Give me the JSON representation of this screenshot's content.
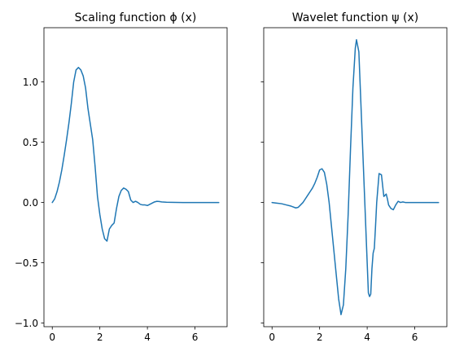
{
  "chart_data": [
    {
      "type": "line",
      "title": "Scaling function ϕ (x)",
      "xlabel": "",
      "ylabel": "",
      "xlim": [
        -0.35,
        7.35
      ],
      "ylim": [
        -1.03,
        1.45
      ],
      "xticks": [
        0,
        2,
        4,
        6
      ],
      "xtick_labels": [
        "0",
        "2",
        "4",
        "6"
      ],
      "yticks": [
        -1.0,
        -0.5,
        0.0,
        0.5,
        1.0
      ],
      "ytick_labels": [
        "−1.0",
        "−0.5",
        "0.0",
        "0.5",
        "1.0"
      ],
      "grid": false,
      "color": "#1f77b4",
      "series": [
        {
          "x": [
            0,
            0.1,
            0.2,
            0.3,
            0.4,
            0.5,
            0.6,
            0.7,
            0.8,
            0.9,
            1.0,
            1.1,
            1.2,
            1.3,
            1.4,
            1.5,
            1.6,
            1.7,
            1.8,
            1.9,
            2.0,
            2.1,
            2.2,
            2.3,
            2.4,
            2.5,
            2.6,
            2.7,
            2.8,
            2.9,
            3.0,
            3.1,
            3.2,
            3.3,
            3.4,
            3.5,
            3.6,
            3.7,
            3.8,
            3.9,
            4.0,
            4.1,
            4.2,
            4.3,
            4.4,
            4.5,
            4.6,
            4.8,
            5.0,
            5.5,
            6.0,
            6.5,
            7.0
          ],
          "y": [
            0.0,
            0.03,
            0.09,
            0.17,
            0.27,
            0.39,
            0.52,
            0.66,
            0.82,
            1.0,
            1.1,
            1.12,
            1.1,
            1.05,
            0.95,
            0.78,
            0.65,
            0.52,
            0.3,
            0.05,
            -0.1,
            -0.22,
            -0.3,
            -0.32,
            -0.22,
            -0.19,
            -0.17,
            -0.05,
            0.05,
            0.1,
            0.12,
            0.11,
            0.09,
            0.02,
            0.0,
            0.01,
            0.0,
            -0.015,
            -0.02,
            -0.02,
            -0.025,
            -0.015,
            -0.005,
            0.005,
            0.01,
            0.008,
            0.005,
            0.002,
            0.001,
            0.0,
            0.0,
            0.0,
            0.0
          ]
        }
      ]
    },
    {
      "type": "line",
      "title": "Wavelet function ψ (x)",
      "xlabel": "",
      "ylabel": "",
      "xlim": [
        -0.35,
        7.35
      ],
      "ylim": [
        -1.03,
        1.45
      ],
      "xticks": [
        0,
        2,
        4,
        6
      ],
      "xtick_labels": [
        "0",
        "2",
        "4",
        "6"
      ],
      "yticks": [
        -1.0,
        -0.5,
        0.0,
        0.5,
        1.0
      ],
      "ytick_labels": [],
      "grid": false,
      "color": "#1f77b4",
      "series": [
        {
          "x": [
            0,
            0.2,
            0.4,
            0.6,
            0.8,
            1.0,
            1.1,
            1.2,
            1.3,
            1.4,
            1.5,
            1.6,
            1.7,
            1.8,
            1.9,
            2.0,
            2.1,
            2.2,
            2.3,
            2.4,
            2.5,
            2.6,
            2.7,
            2.8,
            2.9,
            3.0,
            3.1,
            3.2,
            3.3,
            3.4,
            3.5,
            3.55,
            3.6,
            3.65,
            3.7,
            3.8,
            3.9,
            4.0,
            4.05,
            4.1,
            4.15,
            4.2,
            4.25,
            4.3,
            4.35,
            4.4,
            4.5,
            4.6,
            4.7,
            4.75,
            4.8,
            4.85,
            4.9,
            5.0,
            5.1,
            5.2,
            5.3,
            5.4,
            5.5,
            5.6,
            5.8,
            6.0,
            6.5,
            7.0
          ],
          "y": [
            0.0,
            -0.005,
            -0.01,
            -0.02,
            -0.03,
            -0.045,
            -0.04,
            -0.02,
            0.0,
            0.03,
            0.06,
            0.09,
            0.12,
            0.16,
            0.21,
            0.27,
            0.28,
            0.25,
            0.15,
            0.0,
            -0.2,
            -0.4,
            -0.6,
            -0.8,
            -0.93,
            -0.85,
            -0.55,
            -0.1,
            0.45,
            0.95,
            1.28,
            1.35,
            1.3,
            1.25,
            1.0,
            0.5,
            0.0,
            -0.5,
            -0.75,
            -0.78,
            -0.76,
            -0.55,
            -0.42,
            -0.38,
            -0.2,
            0.0,
            0.24,
            0.23,
            0.05,
            0.06,
            0.07,
            0.03,
            -0.02,
            -0.05,
            -0.06,
            -0.02,
            0.01,
            0.0,
            0.005,
            0.0,
            0.0,
            0.0,
            0.0,
            0.0
          ]
        }
      ]
    }
  ]
}
